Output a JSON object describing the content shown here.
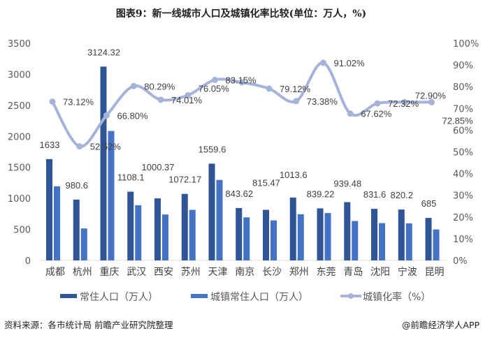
{
  "chart_data": {
    "type": "bar",
    "title": "图表9：新一线城市人口及城镇化率比较(单位：万人，%)",
    "categories": [
      "成都",
      "杭州",
      "重庆",
      "武汉",
      "西安",
      "苏州",
      "天津",
      "南京",
      "长沙",
      "郑州",
      "东莞",
      "青岛",
      "沈阳",
      "宁波",
      "昆明"
    ],
    "series": [
      {
        "name": "常住人口（万人）",
        "type": "bar",
        "axis": "left",
        "color": "#2F5597",
        "values": [
          1633,
          980.6,
          3124.32,
          1108.1,
          1000.37,
          1072.17,
          1559.6,
          843.62,
          815.47,
          1013.6,
          839.22,
          939.48,
          831.6,
          820.2,
          685
        ],
        "labels": [
          "1633",
          "980.6",
          "3124.32",
          "1108.1",
          "1000.37",
          "1072.17",
          "1559.6",
          "843.62",
          "815.47",
          "1013.6",
          "839.22",
          "939.48",
          "831.6",
          "820.2",
          "685"
        ]
      },
      {
        "name": "城镇常住人口（万人）",
        "type": "bar",
        "axis": "left",
        "color": "#4472C4",
        "values": [
          1194,
          515,
          2087,
          890,
          740,
          815,
          1297,
          694,
          645,
          744,
          764,
          635,
          601,
          598,
          499
        ]
      },
      {
        "name": "城镇化率（%）",
        "type": "line",
        "axis": "right",
        "color": "#A5B3DB",
        "values": [
          73.12,
          52.52,
          66.8,
          80.29,
          74.01,
          76.05,
          83.15,
          82.0,
          79.12,
          73.38,
          91.02,
          67.62,
          72.32,
          72.9,
          72.85
        ],
        "labels": [
          "73.12%",
          "52.52%",
          "66.80%",
          "80.29%",
          "74.01%",
          "76.05%",
          "83.15%",
          "",
          "79.12%",
          "73.38%",
          "91.02%",
          "67.62%",
          "72.32%",
          "72.90%",
          "72.85%"
        ]
      }
    ],
    "y_left": {
      "range": [
        0,
        3500
      ],
      "ticks": [
        "0",
        "500",
        "1000",
        "1500",
        "2000",
        "2500",
        "3000",
        "3500"
      ]
    },
    "y_right": {
      "range": [
        0,
        100
      ],
      "ticks": [
        "0%",
        "10%",
        "20%",
        "30%",
        "40%",
        "50%",
        "60%",
        "70%",
        "80%",
        "90%",
        "100%"
      ]
    },
    "grid": false,
    "legend": "bottom"
  },
  "footer": {
    "source": "资料来源：各市统计局 前瞻产业研究院整理",
    "brand": "@前瞻经济学人APP"
  }
}
